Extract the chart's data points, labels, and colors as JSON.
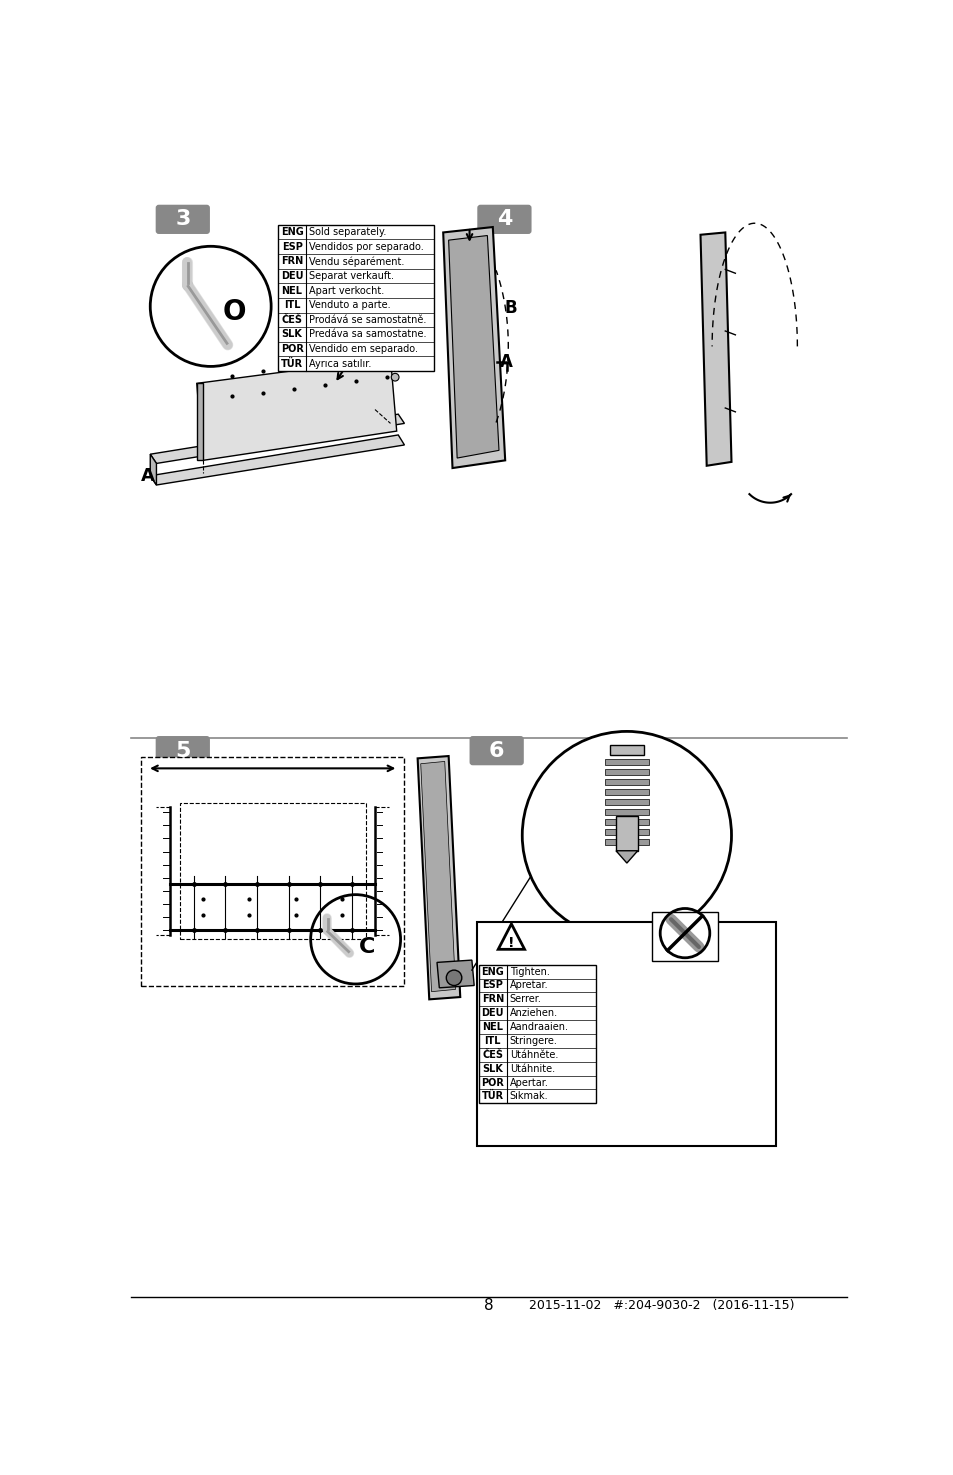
{
  "bg_color": "#ffffff",
  "footer_text": "8",
  "footer_right": "2015-11-02   #:204-9030-2   (2016-11-15)",
  "lang_table_rows": [
    [
      "ENG",
      "Sold separately."
    ],
    [
      "ESP",
      "Vendidos por separado."
    ],
    [
      "FRN",
      "Vendu séparément."
    ],
    [
      "DEU",
      "Separat verkauft."
    ],
    [
      "NEL",
      "Apart verkocht."
    ],
    [
      "ITL",
      "Venduto a parte."
    ],
    [
      "ČEŠ",
      "Prodává se samostatně."
    ],
    [
      "SLK",
      "Predáva sa samostatne."
    ],
    [
      "POR",
      "Vendido em separado."
    ],
    [
      "TÜR",
      "Ayrıca satılır."
    ]
  ],
  "lang_table2_rows": [
    [
      "ENG",
      "Tighten."
    ],
    [
      "ESP",
      "Apretar."
    ],
    [
      "FRN",
      "Serrer."
    ],
    [
      "DEU",
      "Anziehen."
    ],
    [
      "NEL",
      "Aandraaien."
    ],
    [
      "ITL",
      "Stringere."
    ],
    [
      "ČEŠ",
      "Utáhněte."
    ],
    [
      "SLK",
      "Utáhnite."
    ],
    [
      "POR",
      "Apertar."
    ],
    [
      "TÜR",
      "Sıkmak."
    ]
  ]
}
